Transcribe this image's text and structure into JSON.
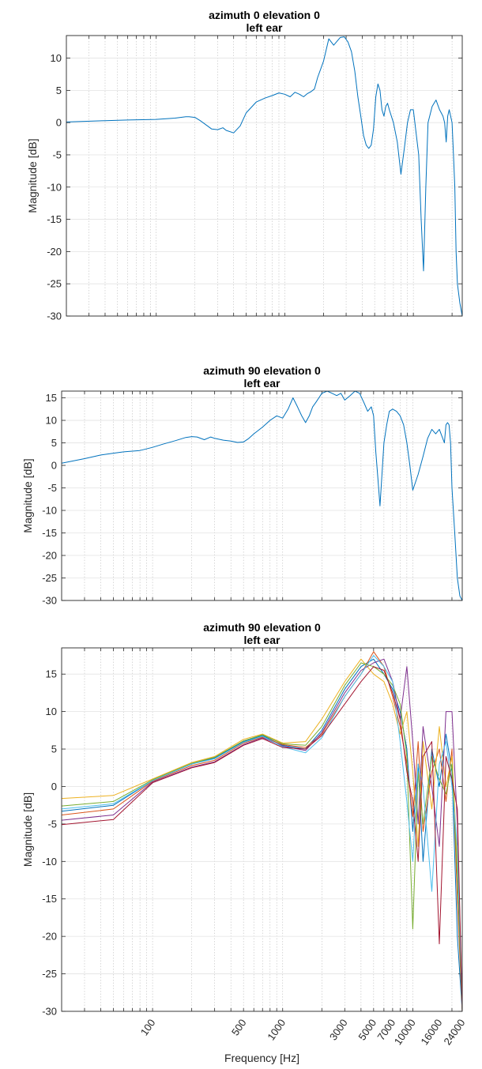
{
  "chart_data": [
    {
      "type": "line",
      "title": "azimuth 0 elevation 0",
      "subtitle": "left ear",
      "xlabel": "",
      "ylabel": "Magnitude [dB]",
      "xscale": "log",
      "xlim": [
        20,
        24000
      ],
      "ylim": [
        -30,
        13.5
      ],
      "yticks": [
        10,
        5,
        0,
        -5,
        -10,
        -15,
        -20,
        -25,
        -30
      ],
      "xticks": [],
      "xtick_labels": [],
      "grid": true,
      "colors": [
        "#0072BD"
      ],
      "series": [
        {
          "color": "#0072BD",
          "x": [
            20,
            40,
            60,
            100,
            140,
            170,
            180,
            200,
            220,
            250,
            270,
            300,
            330,
            350,
            400,
            450,
            500,
            600,
            700,
            800,
            900,
            1000,
            1100,
            1200,
            1300,
            1400,
            1500,
            1600,
            1700,
            1800,
            2000,
            2200,
            2400,
            2700,
            2900,
            3100,
            3300,
            3500,
            3700,
            3900,
            4100,
            4300,
            4500,
            4700,
            4900,
            5100,
            5300,
            5500,
            5700,
            5900,
            6100,
            6300,
            6500,
            7000,
            7500,
            8000,
            8500,
            9000,
            9500,
            10000,
            11000,
            11500,
            12000,
            12500,
            13000,
            14000,
            15000,
            16000,
            17000,
            17500,
            18000,
            18500,
            19000,
            19500,
            20000,
            20500,
            21000,
            21500,
            22000,
            23000,
            24000
          ],
          "y": [
            0.1,
            0.3,
            0.4,
            0.5,
            0.7,
            0.9,
            0.9,
            0.8,
            0.3,
            -0.5,
            -1.0,
            -1.1,
            -0.8,
            -1.2,
            -1.6,
            -0.5,
            1.5,
            3.2,
            3.8,
            4.2,
            4.6,
            4.4,
            4.0,
            4.7,
            4.4,
            4.0,
            4.5,
            4.8,
            5.2,
            7.0,
            9.5,
            13.0,
            12.0,
            13.2,
            13.3,
            12.5,
            11.0,
            8.0,
            4.0,
            1.0,
            -2.0,
            -3.5,
            -4.0,
            -3.5,
            -1.0,
            4.0,
            6.0,
            5.0,
            2.0,
            1.0,
            2.5,
            3.0,
            2.0,
            0.0,
            -3.0,
            -8.0,
            -4.0,
            0.0,
            2.0,
            2.0,
            -5.0,
            -15.0,
            -23.0,
            -10.0,
            0.0,
            2.5,
            3.5,
            2.0,
            1.0,
            0.0,
            -3.0,
            1.0,
            2.0,
            1.0,
            0.0,
            -5.0,
            -10.0,
            -20.0,
            -25.0,
            -28.0,
            -30.0
          ]
        }
      ]
    },
    {
      "type": "line",
      "title": "azimuth 90 elevation 0",
      "subtitle": "left ear",
      "xlabel": "",
      "ylabel": "Magnitude [dB]",
      "xscale": "log",
      "xlim": [
        20,
        24000
      ],
      "ylim": [
        -30,
        16.5
      ],
      "yticks": [
        15,
        10,
        5,
        0,
        -5,
        -10,
        -15,
        -20,
        -25,
        -30
      ],
      "xticks": [],
      "xtick_labels": [],
      "grid": true,
      "colors": [
        "#0072BD"
      ],
      "series": [
        {
          "color": "#0072BD",
          "x": [
            20,
            30,
            40,
            50,
            60,
            80,
            100,
            120,
            150,
            180,
            200,
            220,
            250,
            280,
            300,
            350,
            400,
            450,
            500,
            550,
            600,
            700,
            800,
            900,
            1000,
            1100,
            1200,
            1300,
            1400,
            1500,
            1600,
            1700,
            1800,
            1900,
            2000,
            2200,
            2400,
            2600,
            2800,
            3000,
            3300,
            3600,
            3900,
            4200,
            4500,
            4800,
            5000,
            5200,
            5400,
            5600,
            5800,
            6000,
            6300,
            6600,
            7000,
            7500,
            8000,
            8500,
            9000,
            9500,
            10000,
            11000,
            12000,
            13000,
            14000,
            15000,
            16000,
            17000,
            17500,
            18000,
            18500,
            19000,
            19500,
            20000,
            21000,
            22000,
            23000,
            24000
          ],
          "y": [
            0.5,
            1.5,
            2.3,
            2.7,
            3.0,
            3.3,
            4.0,
            4.7,
            5.5,
            6.2,
            6.4,
            6.3,
            5.7,
            6.3,
            6.0,
            5.6,
            5.4,
            5.1,
            5.2,
            6.0,
            7.0,
            8.5,
            10.0,
            11.0,
            10.5,
            12.5,
            15.0,
            13.0,
            11.0,
            9.5,
            11.0,
            13.0,
            14.0,
            15.0,
            16.0,
            16.5,
            16.0,
            15.5,
            16.0,
            14.5,
            15.5,
            16.5,
            16.0,
            14.0,
            12.0,
            13.0,
            11.0,
            3.0,
            -3.0,
            -9.0,
            -2.0,
            5.0,
            9.0,
            12.0,
            12.5,
            12.0,
            11.0,
            9.0,
            5.0,
            0.0,
            -5.5,
            -2.0,
            2.0,
            6.0,
            8.0,
            7.0,
            8.0,
            6.0,
            5.0,
            9.0,
            9.5,
            9.0,
            5.0,
            -5.0,
            -15.0,
            -25.0,
            -29.0,
            -30.0
          ]
        }
      ]
    },
    {
      "type": "line",
      "title": "azimuth 90 elevation 0",
      "subtitle": "left ear",
      "xlabel": "Frequency [Hz]",
      "ylabel": "Magnitude [dB]",
      "xscale": "log",
      "xlim": [
        20,
        24000
      ],
      "ylim": [
        -30,
        18.5
      ],
      "yticks": [
        15,
        10,
        5,
        0,
        -5,
        -10,
        -15,
        -20,
        -25,
        -30
      ],
      "xticks": [
        100,
        500,
        1000,
        3000,
        5000,
        7000,
        10000,
        16000,
        24000
      ],
      "xtick_labels": [
        "100",
        "500",
        "1000",
        "3000",
        "5000",
        "7000",
        "10000",
        "16000",
        "24000"
      ],
      "grid": true,
      "colors": [
        "#0072BD",
        "#D95319",
        "#EDB120",
        "#7E2F8E",
        "#77AC30",
        "#4DBEEE",
        "#A2142F"
      ],
      "series": [
        {
          "color": "#0072BD",
          "x": [
            20,
            50,
            100,
            200,
            300,
            500,
            700,
            1000,
            1500,
            2000,
            3000,
            4000,
            5000,
            6000,
            7000,
            8000,
            9000,
            10000,
            11000,
            12000,
            14000,
            16000,
            18000,
            20000,
            22000,
            24000
          ],
          "y": [
            -3.3,
            -2.5,
            0.8,
            3.0,
            3.8,
            6.0,
            6.8,
            5.5,
            5.0,
            7.5,
            13.0,
            16.0,
            17.0,
            15.0,
            13.0,
            10.0,
            5.0,
            -6.0,
            3.0,
            -10.0,
            5.0,
            0.0,
            7.0,
            2.0,
            -20.0,
            -30.0
          ]
        },
        {
          "color": "#D95319",
          "x": [
            20,
            50,
            100,
            200,
            300,
            500,
            700,
            1000,
            1500,
            2000,
            3000,
            4000,
            5000,
            6000,
            7000,
            8000,
            9000,
            10000,
            11000,
            12000,
            14000,
            16000,
            18000,
            20000,
            22000,
            24000
          ],
          "y": [
            -3.8,
            -3.0,
            0.7,
            2.8,
            3.5,
            5.8,
            6.6,
            5.6,
            5.2,
            7.0,
            12.0,
            15.0,
            18.0,
            16.0,
            12.0,
            8.0,
            3.0,
            -4.0,
            6.0,
            -6.0,
            2.0,
            5.0,
            -2.0,
            5.0,
            -15.0,
            -30.0
          ]
        },
        {
          "color": "#EDB120",
          "x": [
            20,
            50,
            100,
            200,
            300,
            500,
            700,
            1000,
            1500,
            2000,
            3000,
            4000,
            5000,
            6000,
            7000,
            8000,
            9000,
            10000,
            11000,
            12000,
            14000,
            16000,
            18000,
            20000,
            22000,
            24000
          ],
          "y": [
            -1.6,
            -1.2,
            1.0,
            3.2,
            4.0,
            6.3,
            7.0,
            5.8,
            6.0,
            9.0,
            14.0,
            17.0,
            15.0,
            14.0,
            11.0,
            7.0,
            10.0,
            2.0,
            -8.0,
            6.0,
            -3.0,
            8.0,
            0.0,
            4.0,
            -10.0,
            -30.0
          ]
        },
        {
          "color": "#7E2F8E",
          "x": [
            20,
            50,
            100,
            200,
            300,
            500,
            700,
            1000,
            1500,
            2000,
            3000,
            4000,
            5000,
            6000,
            7000,
            8000,
            9000,
            10000,
            11000,
            12000,
            14000,
            16000,
            18000,
            20000,
            22000,
            24000
          ],
          "y": [
            -4.5,
            -3.8,
            0.6,
            2.6,
            3.3,
            5.6,
            6.5,
            5.4,
            4.8,
            7.2,
            12.5,
            15.5,
            16.5,
            17.0,
            14.0,
            9.0,
            16.0,
            6.0,
            -5.0,
            8.0,
            0.0,
            -8.0,
            10.0,
            10.0,
            -5.0,
            -30.0
          ]
        },
        {
          "color": "#77AC30",
          "x": [
            20,
            50,
            100,
            200,
            300,
            500,
            700,
            1000,
            1500,
            2000,
            3000,
            4000,
            5000,
            6000,
            7000,
            8000,
            9000,
            10000,
            11000,
            12000,
            14000,
            16000,
            18000,
            20000,
            22000,
            24000
          ],
          "y": [
            -2.6,
            -2.0,
            0.9,
            3.1,
            3.9,
            6.1,
            6.9,
            5.7,
            5.5,
            8.0,
            13.5,
            16.5,
            16.0,
            15.0,
            13.5,
            11.0,
            4.0,
            -19.0,
            2.0,
            -5.0,
            4.0,
            1.0,
            -1.0,
            3.0,
            -12.0,
            -30.0
          ]
        },
        {
          "color": "#4DBEEE",
          "x": [
            20,
            50,
            100,
            200,
            300,
            500,
            700,
            1000,
            1500,
            2000,
            3000,
            4000,
            5000,
            6000,
            7000,
            8000,
            9000,
            10000,
            11000,
            12000,
            14000,
            16000,
            18000,
            20000,
            22000,
            24000
          ],
          "y": [
            -3.0,
            -2.3,
            0.8,
            3.0,
            3.7,
            5.9,
            6.7,
            5.3,
            4.5,
            6.5,
            12.0,
            15.0,
            17.5,
            16.0,
            14.0,
            6.0,
            -2.0,
            -10.0,
            3.0,
            0.0,
            -14.0,
            3.0,
            6.0,
            0.0,
            -8.0,
            -30.0
          ]
        },
        {
          "color": "#A2142F",
          "x": [
            20,
            50,
            100,
            200,
            300,
            500,
            700,
            1000,
            1500,
            2000,
            3000,
            4000,
            5000,
            6000,
            7000,
            8000,
            9000,
            10000,
            11000,
            12000,
            14000,
            16000,
            18000,
            20000,
            22000,
            24000
          ],
          "y": [
            -5.1,
            -4.4,
            0.5,
            2.5,
            3.2,
            5.5,
            6.4,
            5.2,
            5.0,
            6.8,
            11.0,
            14.0,
            16.0,
            15.5,
            12.5,
            9.0,
            2.0,
            -2.0,
            -10.0,
            4.0,
            6.0,
            -21.0,
            4.0,
            1.0,
            -3.0,
            -30.0
          ]
        }
      ]
    }
  ]
}
